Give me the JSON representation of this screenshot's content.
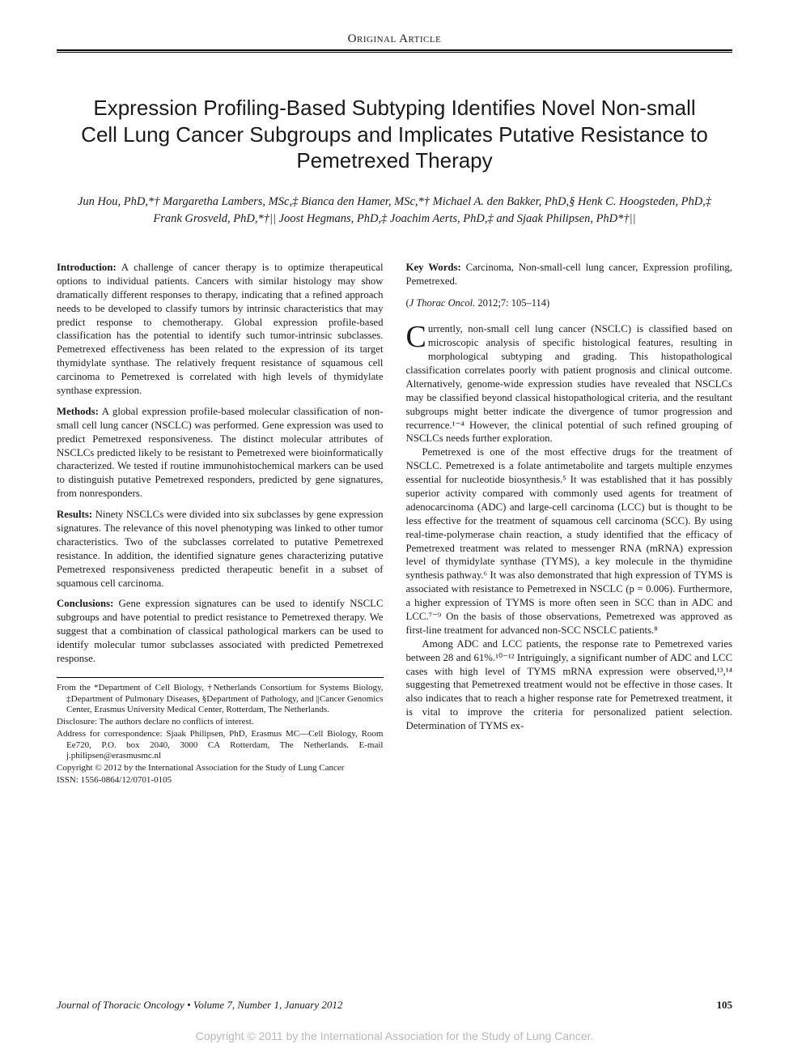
{
  "header": {
    "section_label": "Original Article"
  },
  "title": "Expression Profiling-Based Subtyping Identifies Novel Non-small Cell Lung Cancer Subgroups and Implicates Putative Resistance to Pemetrexed Therapy",
  "authors_html": "Jun Hou, PhD,*† Margaretha Lambers, MSc,‡ Bianca den Hamer, MSc,*† Michael A. den Bakker, PhD,§ Henk C. Hoogsteden, PhD,‡ Frank Grosveld, PhD,*†|| Joost Hegmans, PhD,‡ Joachim Aerts, PhD,‡ and Sjaak Philipsen, PhD*†||",
  "abstract": {
    "introduction_label": "Introduction:",
    "introduction": " A challenge of cancer therapy is to optimize therapeutical options to individual patients. Cancers with similar histology may show dramatically different responses to therapy, indicating that a refined approach needs to be developed to classify tumors by intrinsic characteristics that may predict response to chemotherapy. Global expression profile-based classification has the potential to identify such tumor-intrinsic subclasses. Pemetrexed effectiveness has been related to the expression of its target thymidylate synthase. The relatively frequent resistance of squamous cell carcinoma to Pemetrexed is correlated with high levels of thymidylate synthase expression.",
    "methods_label": "Methods:",
    "methods": " A global expression profile-based molecular classification of non-small cell lung cancer (NSCLC) was performed. Gene expression was used to predict Pemetrexed responsiveness. The distinct molecular attributes of NSCLCs predicted likely to be resistant to Pemetrexed were bioinformatically characterized. We tested if routine immunohistochemical markers can be used to distinguish putative Pemetrexed responders, predicted by gene signatures, from nonresponders.",
    "results_label": "Results:",
    "results": " Ninety NSCLCs were divided into six subclasses by gene expression signatures. The relevance of this novel phenotyping was linked to other tumor characteristics. Two of the subclasses correlated to putative Pemetrexed resistance. In addition, the identified signature genes characterizing putative Pemetrexed responsiveness predicted therapeutic benefit in a subset of squamous cell carcinoma.",
    "conclusions_label": "Conclusions:",
    "conclusions": " Gene expression signatures can be used to identify NSCLC subgroups and have potential to predict resistance to Pemetrexed therapy. We suggest that a combination of classical pathological markers can be used to identify molecular tumor subclasses associated with predicted Pemetrexed response."
  },
  "keywords": {
    "label": "Key Words:",
    "text": " Carcinoma, Non-small-cell lung cancer, Expression profiling, Pemetrexed."
  },
  "citation": {
    "journal": "J Thorac Oncol.",
    "rest": " 2012;7: 105–114)"
  },
  "body": {
    "p1": "urrently, non-small cell lung cancer (NSCLC) is classified based on microscopic analysis of specific histological features, resulting in morphological subtyping and grading. This histopathological classification correlates poorly with patient prognosis and clinical outcome. Alternatively, genome-wide expression studies have revealed that NSCLCs may be classified beyond classical histopathological criteria, and the resultant subgroups might better indicate the divergence of tumor progression and recurrence.¹⁻⁴ However, the clinical potential of such refined grouping of NSCLCs needs further exploration.",
    "p2": "Pemetrexed is one of the most effective drugs for the treatment of NSCLC. Pemetrexed is a folate antimetabolite and targets multiple enzymes essential for nucleotide biosynthesis.⁵ It was established that it has possibly superior activity compared with commonly used agents for treatment of adenocarcinoma (ADC) and large-cell carcinoma (LCC) but is thought to be less effective for the treatment of squamous cell carcinoma (SCC). By using real-time-polymerase chain reaction, a study identified that the efficacy of Pemetrexed treatment was related to messenger RNA (mRNA) expression level of thymidylate synthase (TYMS), a key molecule in the thymidine synthesis pathway.⁶ It was also demonstrated that high expression of TYMS is associated with resistance to Pemetrexed in NSCLC (p = 0.006). Furthermore, a higher expression of TYMS is more often seen in SCC than in ADC and LCC.⁷⁻⁹ On the basis of those observations, Pemetrexed was approved as first-line treatment for advanced non-SCC NSCLC patients.⁸",
    "p3": "Among ADC and LCC patients, the response rate to Pemetrexed varies between 28 and 61%.¹⁰⁻¹² Intriguingly, a significant number of ADC and LCC cases with high level of TYMS mRNA expression were observed,¹³,¹⁴ suggesting that Pemetrexed treatment would not be effective in those cases. It also indicates that to reach a higher response rate for Pemetrexed treatment, it is vital to improve the criteria for personalized patient selection. Determination of TYMS ex-"
  },
  "footnotes": {
    "from": "From the *Department of Cell Biology, †Netherlands Consortium for Systems Biology, ‡Department of Pulmonary Diseases, §Department of Pathology, and ||Cancer Genomics Center, Erasmus University Medical Center, Rotterdam, The Netherlands.",
    "disclosure": "Disclosure: The authors declare no conflicts of interest.",
    "correspondence": "Address for correspondence: Sjaak Philipsen, PhD, Erasmus MC—Cell Biology, Room Ee720, P.O. box 2040, 3000 CA Rotterdam, The Netherlands. E-mail j.philipsen@erasmusmc.nl",
    "copyright": "Copyright © 2012 by the International Association for the Study of Lung Cancer",
    "issn": "ISSN: 1556-0864/12/0701-0105"
  },
  "footer": {
    "left": "Journal of Thoracic Oncology • Volume 7, Number 1, January 2012",
    "page": "105"
  },
  "bottom_copyright": "Copyright © 2011 by the International Association for the Study of Lung Cancer.",
  "colors": {
    "text": "#1a1a1a",
    "background": "#ffffff",
    "rule": "#000000",
    "copyright_gray": "#b8b8b8"
  },
  "typography": {
    "body_font": "Times New Roman",
    "title_font": "Arial",
    "title_size_pt": 20,
    "body_size_pt": 10,
    "footnote_size_pt": 8
  }
}
